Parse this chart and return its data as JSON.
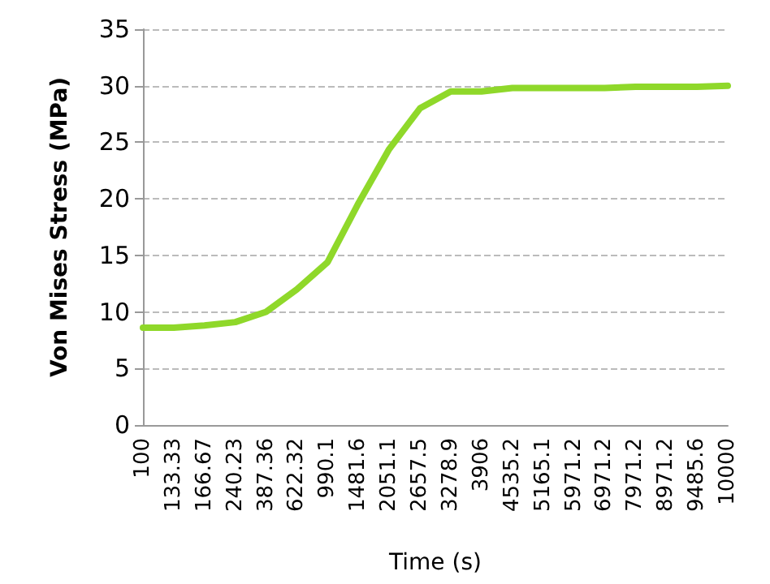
{
  "chart_data": {
    "type": "line",
    "xlabel": "Time (s)",
    "ylabel": "Von Mises Stress (MPa)",
    "categories": [
      "100",
      "133.33",
      "166.67",
      "240.23",
      "387.36",
      "622.32",
      "990.1",
      "1481.6",
      "2051.1",
      "2657.5",
      "3278.9",
      "3906",
      "4535.2",
      "5165.1",
      "5971.2",
      "6971.2",
      "7971.2",
      "8971.2",
      "9485.6",
      "10000"
    ],
    "series": [
      {
        "color": "#8fd82a",
        "values": [
          8.6,
          8.6,
          8.8,
          9.1,
          10.0,
          12.0,
          14.4,
          19.6,
          24.4,
          28.0,
          29.5,
          29.5,
          29.8,
          29.8,
          29.8,
          29.8,
          29.9,
          29.9,
          29.9,
          30.0
        ]
      }
    ],
    "ylim": [
      0,
      35
    ],
    "yticks": [
      0,
      5,
      10,
      15,
      20,
      25,
      30,
      35
    ],
    "grid": "y",
    "marker": "none",
    "line_style": "solid"
  }
}
